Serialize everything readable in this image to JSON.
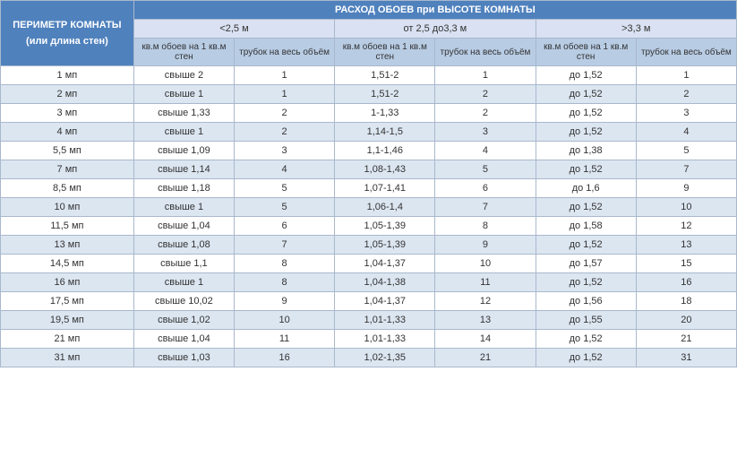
{
  "header": {
    "perimeter": "ПЕРИМЕТР КОМНАТЫ",
    "perimeter_sub": "(или длина стен)",
    "main": "РАСХОД ОБОЕВ при ВЫСОТЕ КОМНАТЫ",
    "ranges": [
      "<2,5 м",
      "от 2,5 до3,3 м",
      ">3,3 м"
    ],
    "sub_a": "кв.м обоев на 1 кв.м стен",
    "sub_b": "трубок на весь объём"
  },
  "colors": {
    "header_bg": "#4f81bd",
    "range_bg": "#d9e1f2",
    "sub_bg": "#b8cce4",
    "row_even": "#dce6f1",
    "row_odd": "#ffffff",
    "border": "#a9b8cc"
  },
  "rows": [
    {
      "p": "1 мп",
      "c": [
        "свыше 2",
        "1",
        "1,51-2",
        "1",
        "до 1,52",
        "1"
      ]
    },
    {
      "p": "2 мп",
      "c": [
        "свыше 1",
        "1",
        "1,51-2",
        "2",
        "до 1,52",
        "2"
      ]
    },
    {
      "p": "3 мп",
      "c": [
        "свыше 1,33",
        "2",
        "1-1,33",
        "2",
        "до 1,52",
        "3"
      ]
    },
    {
      "p": "4 мп",
      "c": [
        "свыше 1",
        "2",
        "1,14-1,5",
        "3",
        "до 1,52",
        "4"
      ]
    },
    {
      "p": "5,5 мп",
      "c": [
        "свыше 1,09",
        "3",
        "1,1-1,46",
        "4",
        "до 1,38",
        "5"
      ]
    },
    {
      "p": "7 мп",
      "c": [
        "свыше 1,14",
        "4",
        "1,08-1,43",
        "5",
        "до 1,52",
        "7"
      ]
    },
    {
      "p": "8,5 мп",
      "c": [
        "свыше 1,18",
        "5",
        "1,07-1,41",
        "6",
        "до 1,6",
        "9"
      ]
    },
    {
      "p": "10 мп",
      "c": [
        "свыше 1",
        "5",
        "1,06-1,4",
        "7",
        "до 1,52",
        "10"
      ]
    },
    {
      "p": "11,5 мп",
      "c": [
        "свыше 1,04",
        "6",
        "1,05-1,39",
        "8",
        "до 1,58",
        "12"
      ]
    },
    {
      "p": "13 мп",
      "c": [
        "свыше 1,08",
        "7",
        "1,05-1,39",
        "9",
        "до 1,52",
        "13"
      ]
    },
    {
      "p": "14,5 мп",
      "c": [
        "свыше 1,1",
        "8",
        "1,04-1,37",
        "10",
        "до 1,57",
        "15"
      ]
    },
    {
      "p": "16 мп",
      "c": [
        "свыше 1",
        "8",
        "1,04-1,38",
        "11",
        "до 1,52",
        "16"
      ]
    },
    {
      "p": "17,5 мп",
      "c": [
        "свыше 10,02",
        "9",
        "1,04-1,37",
        "12",
        "до 1,56",
        "18"
      ]
    },
    {
      "p": "19,5 мп",
      "c": [
        "свыше 1,02",
        "10",
        "1,01-1,33",
        "13",
        "до 1,55",
        "20"
      ]
    },
    {
      "p": "21 мп",
      "c": [
        "свыше 1,04",
        "11",
        "1,01-1,33",
        "14",
        "до 1,52",
        "21"
      ]
    },
    {
      "p": "31 мп",
      "c": [
        "свыше 1,03",
        "16",
        "1,02-1,35",
        "21",
        "до 1,52",
        "31"
      ]
    }
  ]
}
